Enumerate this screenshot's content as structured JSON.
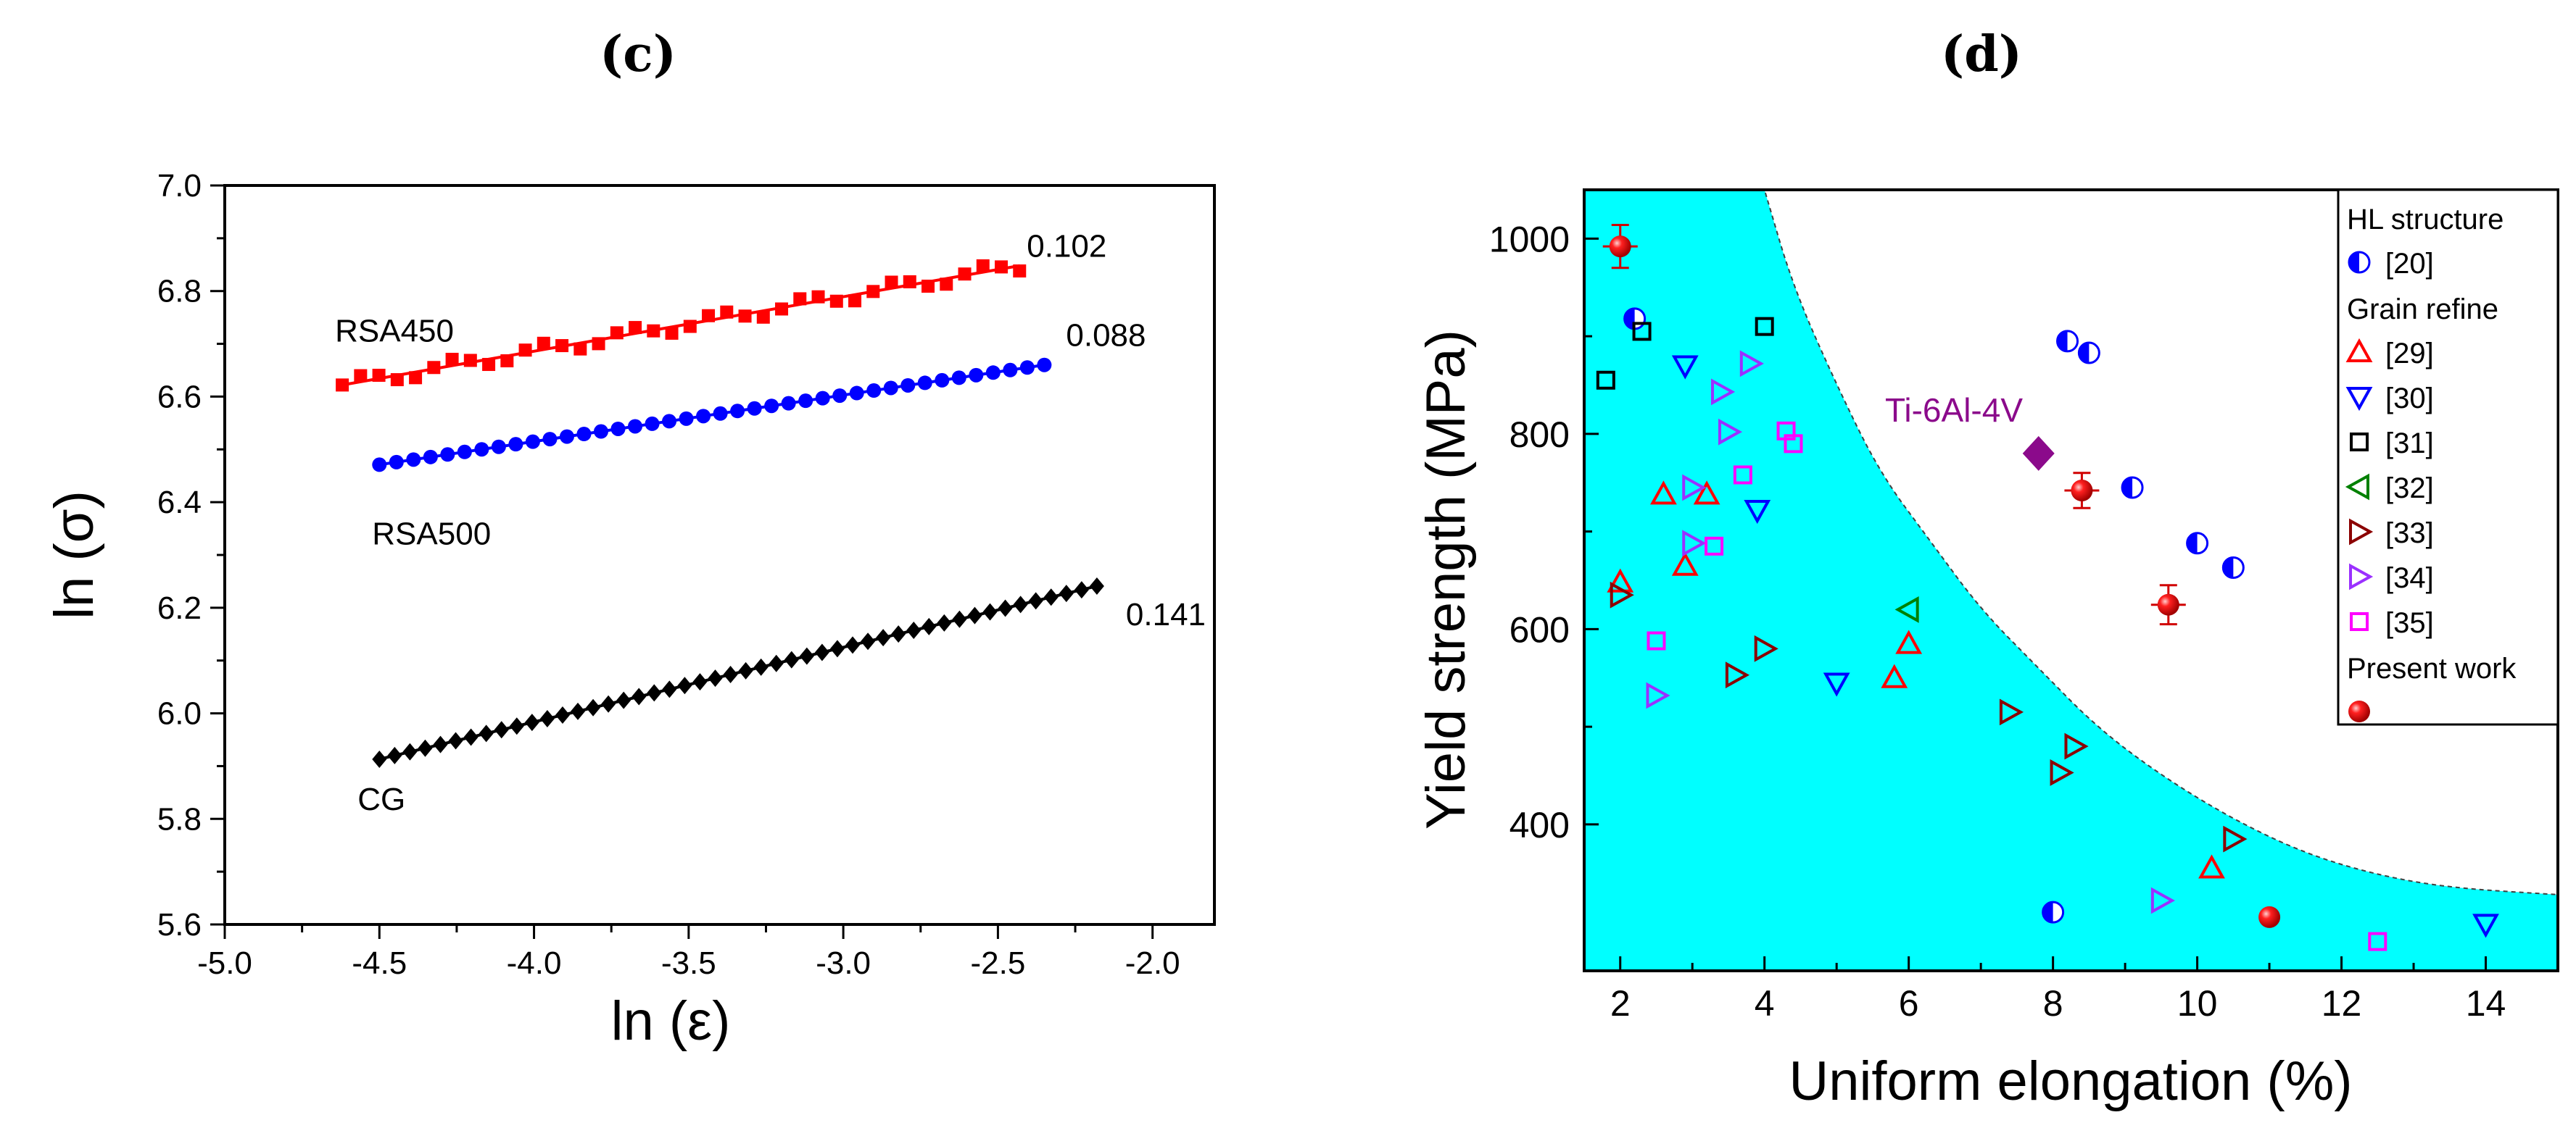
{
  "chart_data": [
    {
      "type": "line",
      "panel_label": "(c)",
      "xlabel": "ln (ε)",
      "ylabel": "ln (σ)",
      "xlim": [
        -5.0,
        -1.8
      ],
      "ylim": [
        5.6,
        7.0
      ],
      "xticks": [
        "-5.0",
        "-4.5",
        "-4.0",
        "-3.5",
        "-3.0",
        "-2.5",
        "-2.0"
      ],
      "yticks": [
        "5.6",
        "5.8",
        "6.0",
        "6.2",
        "6.4",
        "6.6",
        "6.8",
        "7.0"
      ],
      "series": [
        {
          "name": "RSA450",
          "color": "#ff0000",
          "marker": "square",
          "x_start": -4.62,
          "x_end": -2.43,
          "y_start": 6.622,
          "y_end": 6.848,
          "slope_label": "0.102",
          "n_points": 38
        },
        {
          "name": "RSA500",
          "color": "#0000ff",
          "marker": "circle",
          "x_start": -4.5,
          "x_end": -2.35,
          "y_start": 6.471,
          "y_end": 6.66,
          "slope_label": "0.088",
          "n_points": 40
        },
        {
          "name": "CG",
          "color": "#000000",
          "marker": "diamond",
          "x_start": -4.5,
          "x_end": -2.18,
          "y_start": 5.913,
          "y_end": 6.241,
          "slope_label": "0.141",
          "n_points": 48
        }
      ]
    },
    {
      "type": "scatter",
      "panel_label": "(d)",
      "xlabel": "Uniform elongation (%)",
      "ylabel": "Yield strength (MPa)",
      "xlim": [
        1.5,
        15
      ],
      "ylim": [
        250,
        1050
      ],
      "xticks": [
        "2",
        "4",
        "6",
        "8",
        "10",
        "12",
        "14"
      ],
      "yticks": [
        "400",
        "600",
        "800",
        "1000"
      ],
      "annotation": {
        "text": "Ti-6Al-4V",
        "x": 7.8,
        "y": 780,
        "color": "#8b0a8b"
      },
      "shaded_region_boundary": [
        [
          4.0,
          1050
        ],
        [
          4.4,
          950
        ],
        [
          5.0,
          850
        ],
        [
          5.6,
          760
        ],
        [
          6.3,
          690
        ],
        [
          7.0,
          620
        ],
        [
          7.8,
          560
        ],
        [
          8.6,
          500
        ],
        [
          9.5,
          450
        ],
        [
          10.5,
          405
        ],
        [
          11.5,
          370
        ],
        [
          12.5,
          348
        ],
        [
          13.5,
          335
        ],
        [
          15.0,
          328
        ]
      ],
      "shaded_color": "#00ffff",
      "legend": [
        {
          "type": "header",
          "text": "HL structure"
        },
        {
          "type": "entry",
          "text": "[20]",
          "marker": "halfcircle",
          "color": "#0000ff"
        },
        {
          "type": "header",
          "text": "Grain refine"
        },
        {
          "type": "entry",
          "text": "[29]",
          "marker": "tri-up",
          "color": "#ff0000"
        },
        {
          "type": "entry",
          "text": "[30]",
          "marker": "tri-down",
          "color": "#0000ff"
        },
        {
          "type": "entry",
          "text": "[31]",
          "marker": "square",
          "color": "#000000"
        },
        {
          "type": "entry",
          "text": "[32]",
          "marker": "tri-left",
          "color": "#008000"
        },
        {
          "type": "entry",
          "text": "[33]",
          "marker": "tri-right",
          "color": "#8b0000"
        },
        {
          "type": "entry",
          "text": "[34]",
          "marker": "tri-right",
          "color": "#9b30ff"
        },
        {
          "type": "entry",
          "text": "[35]",
          "marker": "square",
          "color": "#ff00ff"
        },
        {
          "type": "header",
          "text": "Present work"
        },
        {
          "type": "entry",
          "text": "",
          "marker": "sphere",
          "color": "#ff0000"
        }
      ],
      "series": [
        {
          "name": "[20]",
          "marker": "halfcircle",
          "color": "#0000ff",
          "points": [
            [
              2.2,
              918
            ],
            [
              8.2,
              895
            ],
            [
              8.5,
              883
            ],
            [
              9.1,
              745
            ],
            [
              10.0,
              688
            ],
            [
              10.5,
              663
            ],
            [
              8.0,
              310
            ]
          ]
        },
        {
          "name": "[29]",
          "marker": "tri-up",
          "color": "#ff0000",
          "points": [
            [
              2.0,
              648
            ],
            [
              2.6,
              738
            ],
            [
              2.9,
              665
            ],
            [
              3.2,
              738
            ],
            [
              5.8,
              550
            ],
            [
              6.0,
              585
            ],
            [
              10.2,
              355
            ]
          ]
        },
        {
          "name": "[30]",
          "marker": "tri-down",
          "color": "#0000ff",
          "points": [
            [
              2.9,
              870
            ],
            [
              3.9,
              722
            ],
            [
              5.0,
              545
            ],
            [
              14.0,
              298
            ]
          ]
        },
        {
          "name": "[31]",
          "marker": "square",
          "color": "#000000",
          "points": [
            [
              1.8,
              855
            ],
            [
              2.3,
              905
            ],
            [
              4.0,
              910
            ]
          ]
        },
        {
          "name": "[32]",
          "marker": "tri-left",
          "color": "#008000",
          "points": [
            [
              6.0,
              620
            ]
          ]
        },
        {
          "name": "[33]",
          "marker": "tri-right",
          "color": "#8b0000",
          "points": [
            [
              2.0,
              635
            ],
            [
              3.6,
              553
            ],
            [
              4.0,
              580
            ],
            [
              7.4,
              515
            ],
            [
              8.1,
              453
            ],
            [
              8.3,
              480
            ],
            [
              10.5,
              385
            ]
          ]
        },
        {
          "name": "[34]",
          "marker": "tri-right",
          "color": "#9b30ff",
          "points": [
            [
              3.0,
              745
            ],
            [
              3.4,
              843
            ],
            [
              3.5,
              802
            ],
            [
              3.8,
              872
            ],
            [
              3.0,
              688
            ],
            [
              2.5,
              532
            ],
            [
              9.5,
              322
            ]
          ]
        },
        {
          "name": "[35]",
          "marker": "square",
          "color": "#ff00ff",
          "points": [
            [
              2.5,
              588
            ],
            [
              3.3,
              685
            ],
            [
              3.7,
              758
            ],
            [
              4.3,
              803
            ],
            [
              4.4,
              790
            ],
            [
              12.5,
              280
            ]
          ]
        },
        {
          "name": "Present work",
          "marker": "sphere",
          "color": "#ff0000",
          "points": [
            [
              2.0,
              992,
              22
            ],
            [
              8.4,
              742,
              18
            ],
            [
              9.6,
              625,
              20
            ],
            [
              11.0,
              305,
              0
            ]
          ]
        },
        {
          "name": "Ti-6Al-4V",
          "marker": "diamond",
          "color": "#8b0a8b",
          "points": [
            [
              7.8,
              780
            ]
          ]
        }
      ]
    }
  ]
}
